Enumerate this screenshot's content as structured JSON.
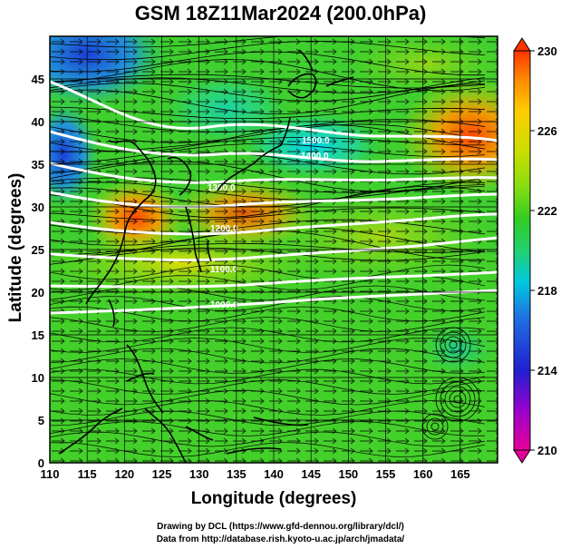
{
  "title": "GSM 18Z11Mar2024 (200.0hPa)",
  "xlabel": "Longitude (degrees)",
  "ylabel": "Latitude  (degrees)",
  "credits": [
    "Drawing by DCL (https://www.gfd-dennou.org/library/dcl/)",
    "Data from http://database.rish.kyoto-u.ac.jp/arch/jmadata/"
  ],
  "chart_data": {
    "type": "heatmap",
    "variable": "temperature",
    "pressure_level": "200.0hPa",
    "x_ticks": [
      110,
      115,
      120,
      125,
      130,
      135,
      140,
      145,
      150,
      155,
      160,
      165
    ],
    "y_ticks": [
      0,
      5,
      10,
      15,
      20,
      25,
      30,
      35,
      40,
      45
    ],
    "xlim": [
      110,
      170
    ],
    "ylim": [
      0,
      50
    ],
    "colorbar": {
      "ticks": [
        210,
        214,
        218,
        222,
        226,
        230
      ],
      "range": [
        210,
        230
      ],
      "colors": [
        "#e60099",
        "#9900cc",
        "#2020d0",
        "#1f6fe0",
        "#00c8e0",
        "#22d070",
        "#33cc22",
        "#88dd11",
        "#ccdd00",
        "#ffcc00",
        "#ff8800",
        "#ff3300"
      ]
    },
    "jet_isotach_labels": [
      "1500.0",
      "1400.0",
      "1300.0",
      "1200.0",
      "1100.0",
      "1000.0"
    ],
    "overlays": [
      "streamlines",
      "wind vectors",
      "isotachs",
      "coastlines",
      "lat-lon grid"
    ]
  }
}
